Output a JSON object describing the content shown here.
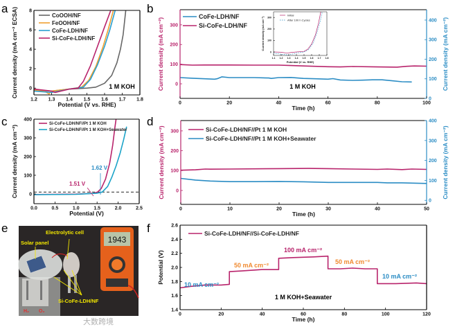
{
  "panel_labels": {
    "a": "a",
    "b": "b",
    "c": "c",
    "d": "d",
    "e": "e",
    "f": "f"
  },
  "colors": {
    "magenta": "#b8236b",
    "blue": "#2a8cc4",
    "orange": "#f0a030",
    "gray": "#666666",
    "cyan": "#1aa3c8"
  },
  "photo_e": {
    "solar_panel_label": "Solar panel",
    "cell_label": "Electrolytic cell",
    "electrode_label": "Si-CoFe-LDH/NF",
    "h2_label": "H₂",
    "o2_label": "O₂",
    "meter_reading": "1943",
    "watermark": "大数跨境"
  },
  "chart_data": [
    {
      "id": "a",
      "type": "line",
      "xlabel": "Potential (V vs. RHE)",
      "ylabel": "Current density (mA cm⁻² ECSA)",
      "xlim": [
        1.2,
        1.8
      ],
      "ylim": [
        -0.7,
        8
      ],
      "xticks": [
        1.2,
        1.3,
        1.4,
        1.5,
        1.6,
        1.7,
        1.8
      ],
      "yticks": [
        0,
        2,
        4,
        6,
        8
      ],
      "annotations": [
        {
          "text": "1 M KOH",
          "color": "#000000"
        }
      ],
      "legend": "top-left",
      "series": [
        {
          "name": "CoOOH/NF",
          "color": "#666666",
          "points": [
            [
              1.2,
              -0.2
            ],
            [
              1.3,
              -0.3
            ],
            [
              1.4,
              -0.1
            ],
            [
              1.5,
              0
            ],
            [
              1.55,
              0.1
            ],
            [
              1.6,
              0.5
            ],
            [
              1.64,
              1.3
            ],
            [
              1.67,
              2.6
            ],
            [
              1.69,
              4
            ],
            [
              1.705,
              5.5
            ],
            [
              1.72,
              8
            ]
          ]
        },
        {
          "name": "FeOOH/NF",
          "color": "#f0a030",
          "points": [
            [
              1.2,
              -0.2
            ],
            [
              1.26,
              -0.3
            ],
            [
              1.285,
              -0.6
            ],
            [
              1.3,
              -0.3
            ],
            [
              1.4,
              -0.1
            ],
            [
              1.47,
              0.1
            ],
            [
              1.51,
              0.8
            ],
            [
              1.55,
              2.2
            ],
            [
              1.59,
              4.2
            ],
            [
              1.62,
              6
            ],
            [
              1.65,
              8
            ]
          ]
        },
        {
          "name": "CoFe-LDH/NF",
          "color": "#2a9fd0",
          "points": [
            [
              1.2,
              -0.3
            ],
            [
              1.3,
              -0.45
            ],
            [
              1.4,
              -0.1
            ],
            [
              1.48,
              0.1
            ],
            [
              1.52,
              0.9
            ],
            [
              1.56,
              2.4
            ],
            [
              1.6,
              4.3
            ],
            [
              1.63,
              6
            ],
            [
              1.66,
              8
            ]
          ]
        },
        {
          "name": "Si-CoFe-LDH/NF",
          "color": "#b8236b",
          "points": [
            [
              1.2,
              -0.1
            ],
            [
              1.3,
              -0.3
            ],
            [
              1.32,
              -0.45
            ],
            [
              1.4,
              -0.1
            ],
            [
              1.45,
              0
            ],
            [
              1.48,
              0.7
            ],
            [
              1.52,
              2.3
            ],
            [
              1.56,
              4.3
            ],
            [
              1.6,
              6.3
            ],
            [
              1.635,
              8
            ]
          ]
        }
      ]
    },
    {
      "id": "b",
      "type": "line",
      "xlabel": "Time (h)",
      "ylabel": "Current density (mA cm⁻²)",
      "y2label": "Current density (mA cm⁻²)",
      "xlim": [
        0,
        100
      ],
      "ylim": [
        -74,
        377
      ],
      "y2lim": [
        0,
        453
      ],
      "xticks": [
        0,
        20,
        40,
        60,
        80,
        100
      ],
      "yticks": [
        0,
        100,
        200,
        300
      ],
      "y2ticks": [
        0,
        100,
        200,
        300,
        400
      ],
      "annotations": [
        {
          "text": "1 M KOH",
          "color": "#000000"
        }
      ],
      "legend": "top-left",
      "series": [
        {
          "name": "CoFe-LDH/NF",
          "color": "#2a8cc4",
          "axis": "right",
          "points": [
            [
              0,
              106
            ],
            [
              5,
              103
            ],
            [
              10,
              100
            ],
            [
              14,
              98
            ],
            [
              15,
              100
            ],
            [
              17,
              110
            ],
            [
              20,
              106
            ],
            [
              30,
              106
            ],
            [
              36,
              104
            ],
            [
              37,
              102
            ],
            [
              40,
              106
            ],
            [
              45,
              107
            ],
            [
              50,
              102
            ],
            [
              55,
              100
            ],
            [
              60,
              98
            ],
            [
              62,
              101
            ],
            [
              65,
              94
            ],
            [
              70,
              92
            ],
            [
              74,
              93
            ],
            [
              78,
              95
            ],
            [
              82,
              95
            ],
            [
              86,
              90
            ],
            [
              90,
              85
            ],
            [
              94,
              84
            ]
          ]
        },
        {
          "name": "Si-CoFe-LDH/NF",
          "color": "#b8236b",
          "axis": "left",
          "points": [
            [
              0,
              98
            ],
            [
              5,
              95
            ],
            [
              10,
              96
            ],
            [
              20,
              96
            ],
            [
              30,
              95
            ],
            [
              40,
              95
            ],
            [
              45,
              93
            ],
            [
              50,
              91
            ],
            [
              60,
              87
            ],
            [
              65,
              86
            ],
            [
              70,
              88
            ],
            [
              80,
              86
            ],
            [
              88,
              85
            ],
            [
              92,
              89
            ],
            [
              95,
              91
            ],
            [
              100,
              90
            ]
          ]
        }
      ]
    },
    {
      "id": "b_inset",
      "type": "line",
      "xlabel": "Potential (V vs. RHE)",
      "ylabel": "Current density (mA cm⁻²)",
      "xlim": [
        1.1,
        1.8
      ],
      "ylim": [
        -30,
        350
      ],
      "xticks": [
        1.1,
        1.2,
        1.3,
        1.4,
        1.5,
        1.6,
        1.7,
        1.8
      ],
      "yticks": [
        0,
        100,
        200,
        300
      ],
      "legend": "top-left",
      "series": [
        {
          "name": "Initial",
          "color": "#b8236b",
          "dash": false,
          "points": [
            [
              1.1,
              0
            ],
            [
              1.2,
              -2
            ],
            [
              1.28,
              -10
            ],
            [
              1.32,
              -5
            ],
            [
              1.4,
              0
            ],
            [
              1.5,
              5
            ],
            [
              1.55,
              25
            ],
            [
              1.6,
              70
            ],
            [
              1.65,
              150
            ],
            [
              1.69,
              250
            ],
            [
              1.72,
              350
            ]
          ]
        },
        {
          "name": "After 100 h Cycles",
          "color": "#2a8cc4",
          "dash": true,
          "points": [
            [
              1.1,
              -10
            ],
            [
              1.2,
              -20
            ],
            [
              1.3,
              -25
            ],
            [
              1.4,
              -10
            ],
            [
              1.5,
              0
            ],
            [
              1.56,
              20
            ],
            [
              1.62,
              80
            ],
            [
              1.67,
              170
            ],
            [
              1.71,
              260
            ],
            [
              1.74,
              350
            ]
          ]
        }
      ]
    },
    {
      "id": "c",
      "type": "line",
      "xlabel": "Potential (V)",
      "ylabel": "Current density (mA cm⁻²)",
      "xlim": [
        0,
        2.5
      ],
      "ylim": [
        -52,
        400
      ],
      "xticks": [
        0.0,
        0.5,
        1.0,
        1.5,
        2.0,
        2.5
      ],
      "yticks": [
        0,
        100,
        200,
        300,
        400
      ],
      "reference_line": 10,
      "annotations": [
        {
          "text": "1.51 V",
          "color": "#b8236b"
        },
        {
          "text": "1.62 V",
          "color": "#2a8cc4"
        }
      ],
      "legend": "top-left",
      "series": [
        {
          "name": "Si-CoFe-LDH/NF//Pt 1 M KOH",
          "color": "#b8236b",
          "points": [
            [
              0,
              -3
            ],
            [
              1.0,
              -1
            ],
            [
              1.4,
              3
            ],
            [
              1.51,
              10
            ],
            [
              1.6,
              30
            ],
            [
              1.7,
              80
            ],
            [
              1.8,
              165
            ],
            [
              1.87,
              260
            ],
            [
              1.92,
              350
            ],
            [
              1.95,
              400
            ]
          ]
        },
        {
          "name": "Si-CoFe-LDH/NF//Pt 1 M KOH+Seawater",
          "color": "#1aa3c8",
          "points": [
            [
              0,
              -4
            ],
            [
              1.0,
              -2
            ],
            [
              1.5,
              4
            ],
            [
              1.62,
              10
            ],
            [
              1.75,
              40
            ],
            [
              1.85,
              90
            ],
            [
              1.95,
              150
            ],
            [
              2.05,
              220
            ],
            [
              2.13,
              290
            ],
            [
              2.2,
              360
            ]
          ]
        }
      ]
    },
    {
      "id": "d",
      "type": "line",
      "xlabel": "Time (h)",
      "ylabel": "Current density (mA cm⁻²)",
      "y2label": "Current density (mA cm⁻²)",
      "xlim": [
        0,
        50
      ],
      "ylim": [
        -70,
        352
      ],
      "y2lim": [
        -20,
        400
      ],
      "xticks": [
        0,
        10,
        20,
        30,
        40,
        50
      ],
      "yticks": [
        0,
        100,
        200,
        300
      ],
      "y2ticks": [
        0,
        100,
        200,
        300,
        400
      ],
      "legend": "top-left",
      "series": [
        {
          "name": "Si-CoFe-LDH/NF//Pt 1 M KOH",
          "color": "#b8236b",
          "axis": "left",
          "points": [
            [
              0,
              102
            ],
            [
              3,
              104
            ],
            [
              5,
              108
            ],
            [
              6,
              107
            ],
            [
              10,
              108
            ],
            [
              20,
              110
            ],
            [
              26,
              111
            ],
            [
              30,
              110
            ],
            [
              35,
              108
            ],
            [
              40,
              106
            ],
            [
              42,
              108
            ],
            [
              45,
              105
            ],
            [
              47,
              108
            ],
            [
              50,
              106
            ]
          ]
        },
        {
          "name": "Si-CoFe-LDH/NF//Pt 1 M KOH+Seawater",
          "color": "#2a8cc4",
          "axis": "right",
          "points": [
            [
              0,
              110
            ],
            [
              3,
              102
            ],
            [
              6,
              97
            ],
            [
              10,
              94
            ],
            [
              15,
              94
            ],
            [
              20,
              95
            ],
            [
              25,
              93
            ],
            [
              30,
              90
            ],
            [
              35,
              90
            ],
            [
              40,
              90
            ],
            [
              42,
              88
            ],
            [
              45,
              88
            ],
            [
              50,
              85
            ]
          ]
        }
      ]
    },
    {
      "id": "f",
      "type": "line",
      "xlabel": "Time (h)",
      "ylabel": "Potential (V)",
      "xlim": [
        0,
        120
      ],
      "ylim": [
        1.4,
        2.6
      ],
      "xticks": [
        0,
        20,
        40,
        60,
        80,
        100,
        120
      ],
      "yticks": [
        1.4,
        1.6,
        1.8,
        2.0,
        2.2,
        2.4,
        2.6
      ],
      "annotations": [
        {
          "text": "10 mA cm⁻²",
          "color": "#2a8cc4"
        },
        {
          "text": "50 mA cm⁻²",
          "color": "#f08a30"
        },
        {
          "text": "100 mA cm⁻²",
          "color": "#b8236b"
        },
        {
          "text": "50 mA cm⁻²",
          "color": "#f08a30"
        },
        {
          "text": "10 mA cm⁻²",
          "color": "#2a8cc4"
        },
        {
          "text": "1 M KOH+Seawater",
          "color": "#000000"
        }
      ],
      "legend": "top-left",
      "series": [
        {
          "name": "Si-CoFe-LDH/NF//Si-CoFe-LDH/NF",
          "color": "#b8236b",
          "points": [
            [
              0,
              1.71
            ],
            [
              5,
              1.73
            ],
            [
              12,
              1.75
            ],
            [
              20,
              1.75
            ],
            [
              24,
              1.76
            ],
            [
              24,
              1.94
            ],
            [
              30,
              1.95
            ],
            [
              40,
              1.97
            ],
            [
              48,
              1.97
            ],
            [
              48,
              2.13
            ],
            [
              55,
              2.14
            ],
            [
              65,
              2.15
            ],
            [
              72,
              2.16
            ],
            [
              72,
              1.98
            ],
            [
              78,
              1.98
            ],
            [
              84,
              1.99
            ],
            [
              90,
              1.98
            ],
            [
              96,
              1.98
            ],
            [
              96,
              1.77
            ],
            [
              105,
              1.77
            ],
            [
              115,
              1.78
            ],
            [
              120,
              1.77
            ]
          ]
        }
      ]
    }
  ]
}
